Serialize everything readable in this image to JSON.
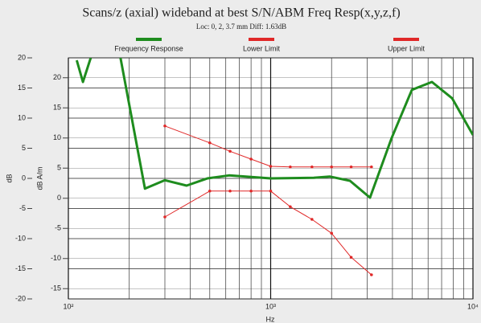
{
  "chart_data": {
    "type": "line",
    "title": "Scans/z (axial) wideband at best S/N/ABM Freq Resp(x,y,z,f)",
    "subtitle": "Loc: 0, 2, 3.7 mm Diff: 1.63dB",
    "x_label": "Hz",
    "y_label": "dB",
    "y2_label": "dB A/m",
    "xscale": "log",
    "xlim": [
      100,
      10000
    ],
    "xticks": [
      {
        "value": 100,
        "label": "10²"
      },
      {
        "value": 1000,
        "label": "10³"
      },
      {
        "value": 10000,
        "label": "10⁴"
      }
    ],
    "xminorticks": [
      200,
      300,
      400,
      500,
      600,
      700,
      800,
      900,
      2000,
      3000,
      4000,
      5000,
      6000,
      7000,
      8000,
      9000
    ],
    "ylim": [
      -20,
      20
    ],
    "yticks": [
      -20,
      -15,
      -10,
      -5,
      0,
      5,
      10,
      15,
      20
    ],
    "y2lim": [
      -16.7,
      23.3
    ],
    "y2ticks": [
      -15,
      -10,
      -5,
      0,
      5,
      10,
      15,
      20
    ],
    "grid": true,
    "legend": "top",
    "series": [
      {
        "name": "Frequency Response",
        "color": "#1e8c1e",
        "width": 3,
        "markers": false,
        "x": [
          110,
          118,
          129,
          150,
          181,
          239,
          300,
          384,
          487,
          623,
          1000,
          1633,
          1959,
          2467,
          3097,
          3963,
          4990,
          6270,
          7890,
          10000
        ],
        "values": [
          19.6,
          16,
          20,
          null,
          20,
          -1.7,
          -0.3,
          -1.2,
          0,
          0.5,
          0,
          0.1,
          0.3,
          -0.4,
          -3.2,
          6.7,
          14.7,
          16,
          13.3,
          7.2
        ]
      },
      {
        "name": "Lower Limit",
        "color": "#e02828",
        "width": 1,
        "markers": true,
        "x": [
          300,
          500,
          630,
          800,
          1000,
          1250,
          1600,
          2000,
          2500,
          3150
        ],
        "values": [
          -6.4,
          -2.1,
          -2.1,
          -2.1,
          -2.1,
          -4.7,
          -6.8,
          -9.1,
          -13.1,
          -16
        ]
      },
      {
        "name": "Upper Limit",
        "color": "#e02828",
        "width": 1,
        "markers": true,
        "x": [
          300,
          500,
          630,
          800,
          1000,
          1250,
          1600,
          2000,
          2500,
          3150
        ],
        "values": [
          8.7,
          5.9,
          4.5,
          3.2,
          2.0,
          1.9,
          1.9,
          1.9,
          1.9,
          1.9
        ]
      }
    ]
  }
}
